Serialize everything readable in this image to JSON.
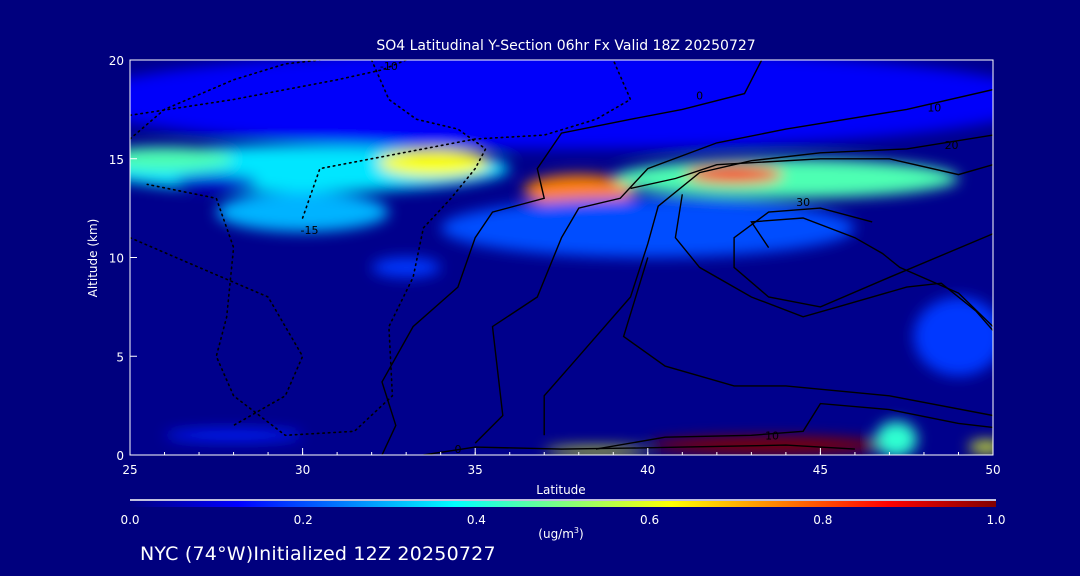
{
  "chart_data": {
    "type": "heatmap",
    "title": "SO4 Latitudinal Y-Section 06hr  Fx Valid 18Z 20250727",
    "xlabel": "Latitude",
    "ylabel": "Altitude (km)",
    "xlim": [
      25,
      50
    ],
    "ylim": [
      0,
      20
    ],
    "xticks": [
      "25",
      "30",
      "35",
      "40",
      "45",
      "50"
    ],
    "yticks": [
      "0",
      "5",
      "10",
      "15",
      "20"
    ],
    "xtick_values": [
      25,
      30,
      35,
      40,
      45,
      50
    ],
    "ytick_values": [
      0,
      5,
      10,
      15,
      20
    ],
    "colorbar": {
      "label": "(ug/m",
      "label_sup": "3",
      "label_end": ")",
      "range": [
        0.0,
        1.0
      ],
      "ticks": [
        "0.0",
        "0.2",
        "0.4",
        "0.6",
        "0.8",
        "1.0"
      ],
      "colors": [
        "#000080",
        "#0000ff",
        "#0080ff",
        "#00ffff",
        "#80ff80",
        "#ffff00",
        "#ff8000",
        "#ff0000",
        "#800000"
      ]
    },
    "field_features": [
      {
        "lat": 37.5,
        "alt": 18,
        "value": 0.12,
        "dlat": 14,
        "dalt": 2.5
      },
      {
        "lat": 30,
        "alt": 14.5,
        "value": 0.35,
        "dlat": 6,
        "dalt": 1.2
      },
      {
        "lat": 26,
        "alt": 15,
        "value": 0.45,
        "dlat": 2,
        "dalt": 0.6
      },
      {
        "lat": 27.5,
        "alt": 13.8,
        "value": 0.08,
        "dlat": 1.2,
        "dalt": 0.4
      },
      {
        "lat": 30,
        "alt": 12.3,
        "value": 0.3,
        "dlat": 2.5,
        "dalt": 1
      },
      {
        "lat": 33.8,
        "alt": 14.8,
        "value": 0.62,
        "dlat": 1.6,
        "dalt": 0.7
      },
      {
        "lat": 38,
        "alt": 13.4,
        "value": 0.75,
        "dlat": 1.6,
        "dalt": 0.8
      },
      {
        "lat": 44,
        "alt": 14,
        "value": 0.45,
        "dlat": 5,
        "dalt": 1
      },
      {
        "lat": 42.5,
        "alt": 14.2,
        "value": 0.85,
        "dlat": 1.4,
        "dalt": 0.45
      },
      {
        "lat": 40,
        "alt": 11.5,
        "value": 0.2,
        "dlat": 6,
        "dalt": 1.5
      },
      {
        "lat": 33,
        "alt": 9.5,
        "value": 0.18,
        "dlat": 1,
        "dalt": 0.5
      },
      {
        "lat": 49,
        "alt": 6,
        "value": 0.18,
        "dlat": 1.3,
        "dalt": 2
      },
      {
        "lat": 28,
        "alt": 1,
        "value": 0.15,
        "dlat": 2,
        "dalt": 0.3
      },
      {
        "lat": 43.5,
        "alt": 0.5,
        "value": 1.0,
        "dlat": 3.5,
        "dalt": 0.45
      },
      {
        "lat": 38.5,
        "alt": 0.2,
        "value": 0.6,
        "dlat": 1.5,
        "dalt": 0.2
      },
      {
        "lat": 47.2,
        "alt": 0.8,
        "value": 0.42,
        "dlat": 0.6,
        "dalt": 0.9
      },
      {
        "lat": 49.8,
        "alt": 0.4,
        "value": 0.6,
        "dlat": 0.5,
        "dalt": 0.3
      }
    ],
    "contours": [
      {
        "level": "0",
        "style": "solid",
        "label_at": [
          41.5,
          18.2
        ],
        "points": [
          [
            43.3,
            20
          ],
          [
            42.8,
            18.3
          ],
          [
            41,
            17.5
          ],
          [
            39.5,
            17
          ],
          [
            37.5,
            16.3
          ],
          [
            36.8,
            14.5
          ],
          [
            37,
            13
          ],
          [
            35.5,
            12.3
          ],
          [
            35,
            11
          ],
          [
            34.5,
            8.5
          ],
          [
            33.2,
            6.5
          ],
          [
            32.3,
            3.7
          ],
          [
            32.7,
            1.5
          ],
          [
            32.3,
            0
          ]
        ]
      },
      {
        "level": "10",
        "style": "solid",
        "label_at": [
          48.3,
          17.6
        ],
        "points": [
          [
            50,
            18.5
          ],
          [
            47.5,
            17.5
          ],
          [
            44,
            16.5
          ],
          [
            42,
            15.8
          ],
          [
            40,
            14.5
          ],
          [
            39.2,
            13
          ],
          [
            38,
            12.5
          ],
          [
            37.5,
            11
          ],
          [
            36.8,
            8
          ],
          [
            35.5,
            6.5
          ],
          [
            35.8,
            2
          ],
          [
            35,
            0.6
          ]
        ]
      },
      {
        "level": "20",
        "style": "solid",
        "label_at": [
          48.8,
          15.7
        ],
        "points": [
          [
            50,
            16.2
          ],
          [
            47.5,
            15.5
          ],
          [
            45,
            15.3
          ],
          [
            43,
            14.9
          ],
          [
            41.5,
            14.3
          ],
          [
            40.3,
            12.6
          ],
          [
            40,
            10.7
          ],
          [
            39.5,
            8
          ],
          [
            38,
            5
          ],
          [
            37,
            3
          ],
          [
            37,
            1
          ]
        ]
      },
      {
        "level": "30",
        "style": "solid",
        "label_at": [
          44.5,
          12.8
        ],
        "points": [
          [
            46.5,
            11.8
          ],
          [
            45,
            12.5
          ],
          [
            43.5,
            12.3
          ],
          [
            42.5,
            11
          ],
          [
            42.5,
            9.5
          ],
          [
            43.5,
            8
          ],
          [
            45,
            7.5
          ],
          [
            47,
            9
          ],
          [
            50,
            11.2
          ]
        ]
      },
      {
        "level": "",
        "style": "solid",
        "label_at": null,
        "points": [
          [
            39.5,
            13.5
          ],
          [
            40.8,
            14
          ],
          [
            42,
            14.7
          ],
          [
            45,
            15
          ],
          [
            47,
            15
          ],
          [
            49,
            14.2
          ],
          [
            50,
            14.7
          ]
        ]
      },
      {
        "level": "",
        "style": "solid",
        "label_at": null,
        "points": [
          [
            43.5,
            10.5
          ],
          [
            43,
            11.8
          ],
          [
            44.5,
            12
          ],
          [
            46,
            11
          ],
          [
            46.8,
            10.2
          ],
          [
            47.3,
            9.5
          ],
          [
            49,
            8.2
          ],
          [
            50,
            6.5
          ]
        ]
      },
      {
        "level": "",
        "style": "solid",
        "label_at": null,
        "points": [
          [
            41,
            13.2
          ],
          [
            40.8,
            11
          ],
          [
            41.5,
            9.5
          ],
          [
            43,
            8
          ],
          [
            44.5,
            7
          ],
          [
            45.5,
            7.5
          ],
          [
            47.5,
            8.5
          ],
          [
            48.5,
            8.7
          ],
          [
            49.5,
            7.3
          ],
          [
            50,
            6.3
          ]
        ]
      },
      {
        "level": "",
        "style": "solid",
        "label_at": null,
        "points": [
          [
            40,
            10
          ],
          [
            39.3,
            6
          ],
          [
            40.5,
            4.5
          ],
          [
            42.5,
            3.5
          ],
          [
            44,
            3.5
          ],
          [
            47,
            3
          ],
          [
            50,
            2
          ]
        ]
      },
      {
        "level": "10",
        "style": "solid",
        "label_at": [
          43.6,
          1.0
        ],
        "points": [
          [
            38.5,
            0.3
          ],
          [
            40.5,
            0.9
          ],
          [
            43,
            1.0
          ],
          [
            44.5,
            1.2
          ],
          [
            45,
            2.6
          ],
          [
            47,
            2.3
          ],
          [
            49,
            1.6
          ],
          [
            50,
            1.4
          ]
        ]
      },
      {
        "level": "0",
        "style": "solid",
        "label_at": [
          34.5,
          0.3
        ],
        "points": [
          [
            33.5,
            0
          ],
          [
            35,
            0.4
          ],
          [
            37.5,
            0.3
          ],
          [
            39.5,
            0.35
          ],
          [
            41,
            0.4
          ],
          [
            44,
            0.5
          ],
          [
            46,
            0.3
          ]
        ]
      },
      {
        "level": "-10",
        "style": "dotted",
        "label_at": [
          32.5,
          19.7
        ],
        "points": [
          [
            25,
            17.2
          ],
          [
            28,
            18
          ],
          [
            31,
            19
          ],
          [
            32.3,
            19.5
          ],
          [
            33,
            20
          ]
        ]
      },
      {
        "level": "",
        "style": "dotted",
        "label_at": null,
        "points": [
          [
            32,
            20
          ],
          [
            32.5,
            18
          ],
          [
            33.3,
            17
          ],
          [
            34.5,
            16.5
          ],
          [
            35.3,
            15.5
          ],
          [
            35,
            14.5
          ],
          [
            34.3,
            13
          ],
          [
            33.5,
            11.5
          ],
          [
            33.2,
            9
          ],
          [
            32.5,
            6.5
          ],
          [
            32.6,
            3
          ],
          [
            31.5,
            1.2
          ],
          [
            29.5,
            1
          ],
          [
            28,
            3
          ],
          [
            27.5,
            5
          ],
          [
            27.8,
            7
          ],
          [
            28,
            10.5
          ],
          [
            27.5,
            13
          ],
          [
            25.5,
            13.7
          ]
        ]
      },
      {
        "level": "-15",
        "style": "dotted",
        "label_at": [
          30.2,
          11.4
        ],
        "points": [
          [
            30,
            12
          ],
          [
            30.5,
            14.5
          ],
          [
            33.5,
            15.5
          ],
          [
            35,
            16
          ],
          [
            37,
            16.2
          ],
          [
            38.5,
            17
          ],
          [
            39.5,
            18
          ],
          [
            39,
            20
          ]
        ]
      },
      {
        "level": "",
        "style": "dotted",
        "label_at": null,
        "points": [
          [
            25,
            16
          ],
          [
            26,
            17.5
          ],
          [
            28,
            19
          ],
          [
            29.5,
            19.8
          ],
          [
            30.5,
            20
          ]
        ]
      },
      {
        "level": "",
        "style": "dotted",
        "label_at": null,
        "points": [
          [
            25,
            11
          ],
          [
            27,
            9.5
          ],
          [
            29,
            8
          ],
          [
            30,
            5
          ],
          [
            29.5,
            3
          ],
          [
            28,
            1.5
          ]
        ]
      }
    ]
  },
  "footer": "NYC (74°W)Initialized 12Z 20250727"
}
